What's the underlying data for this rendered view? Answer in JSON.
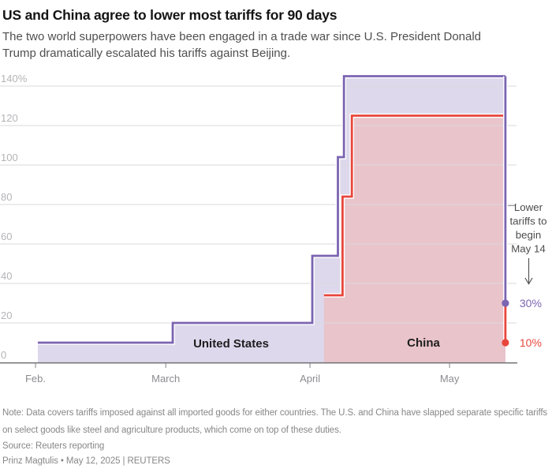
{
  "header": {
    "title": "US and China agree to lower most tariffs for 90 days",
    "subtitle": "The two world superpowers have been engaged in a trade war since U.S. President Donald Trump dramatically escalated his tariffs against Beijing."
  },
  "chart_data": {
    "type": "area",
    "subtype": "step-area",
    "unit": "%",
    "grid": true,
    "y_axis": {
      "ticks": [
        0,
        20,
        40,
        60,
        80,
        100,
        120,
        140
      ],
      "top_tick_label": "140%",
      "ylim": [
        0,
        150
      ]
    },
    "x_axis": {
      "labels": [
        "Feb.",
        "March",
        "April",
        "May"
      ],
      "label_days": [
        0,
        28,
        59,
        89
      ],
      "day0_date": "Feb. 1",
      "end_day": 101
    },
    "series": [
      {
        "name": "United States",
        "color": "#7b64b1",
        "fill": "#ded8ec",
        "steps": [
          {
            "date": "Feb. 4",
            "day": 0.5,
            "value": 10
          },
          {
            "date": "March 4",
            "day": 29.5,
            "value": 20
          },
          {
            "date": "April 2",
            "day": 59.5,
            "value": 54
          },
          {
            "date": "April 8",
            "day": 65,
            "value": 104
          },
          {
            "date": "April 9",
            "day": 66.3,
            "value": 145
          },
          {
            "date": "May 12",
            "day": 101,
            "value": 145
          }
        ],
        "end_drop": {
          "date": "May 14",
          "day": 101,
          "value": 30,
          "label": "30%"
        }
      },
      {
        "name": "China",
        "color": "#e8463c",
        "fill": "#e9c4cb",
        "steps": [
          {
            "date": "April 4",
            "day": 62,
            "value": 34
          },
          {
            "date": "April 9",
            "day": 66,
            "value": 84
          },
          {
            "date": "April 11",
            "day": 68,
            "value": 125
          },
          {
            "date": "May 12",
            "day": 101,
            "value": 125
          }
        ],
        "end_drop": {
          "date": "May 14",
          "day": 101,
          "value": 10,
          "label": "10%"
        }
      }
    ],
    "annotation": {
      "lines": [
        "Lower",
        "tariffs to",
        "begin",
        "May 14"
      ],
      "arrow": "down",
      "text_color": "#4c4c4c"
    },
    "style_colors": {
      "gridline": "#dadadd",
      "axis": "#6f6f73",
      "y_tick_label": "#b4b4b8",
      "x_tick_label": "#8c8c91",
      "series_label": "#1e1e1e"
    }
  },
  "footer": {
    "note": "Note: Data covers tariffs imposed against all imported goods for either countries. The U.S. and China have slapped separate specific tariffs on select goods like steel and agriculture products, which come on top of these duties.",
    "source": "Source: Reuters reporting",
    "byline": "Prinz Magtulis • May 12, 2025 | REUTERS"
  }
}
